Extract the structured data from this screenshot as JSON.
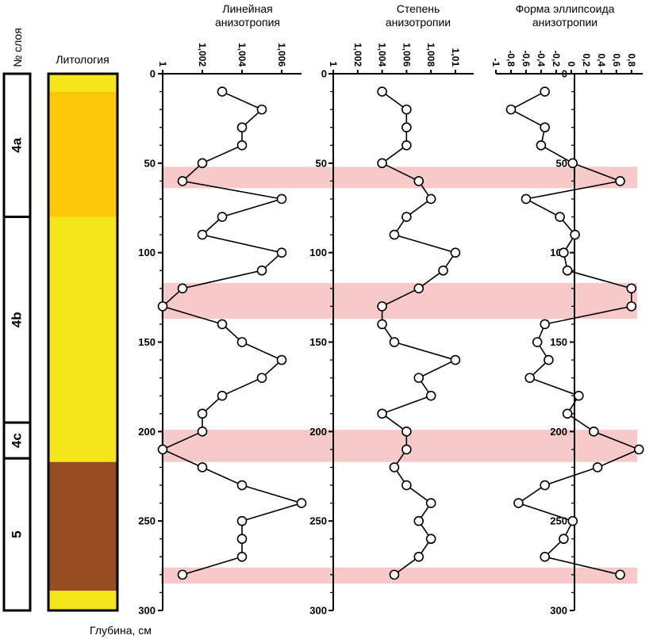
{
  "chart_data": {
    "type": "line",
    "y_axis": {
      "label": "Глубина, см",
      "range": [
        0,
        300
      ],
      "ticks": [
        "0",
        "50",
        "100",
        "150",
        "200",
        "250",
        "300"
      ]
    },
    "layer_column": {
      "header": "№ слоя",
      "layers": [
        {
          "name": "4a",
          "top": 0,
          "bottom": 80
        },
        {
          "name": "4b",
          "top": 80,
          "bottom": 195
        },
        {
          "name": "4c",
          "top": 195,
          "bottom": 215
        },
        {
          "name": "5",
          "top": 215,
          "bottom": 300
        }
      ]
    },
    "lithology": {
      "header": "Литология",
      "units": [
        {
          "top": 0,
          "bottom": 10,
          "color": "#f5e51b"
        },
        {
          "top": 10,
          "bottom": 80,
          "color": "#fdc70a"
        },
        {
          "top": 80,
          "bottom": 217,
          "color": "#f5e51b"
        },
        {
          "top": 217,
          "bottom": 289,
          "color": "#964b20"
        },
        {
          "top": 289,
          "bottom": 300,
          "color": "#f5e51b"
        }
      ]
    },
    "highlight_bands": [
      [
        52,
        64
      ],
      [
        117,
        137
      ],
      [
        199,
        217
      ],
      [
        276,
        285
      ]
    ],
    "highlight_color": "#f7c9c9",
    "depths": [
      10,
      20,
      30,
      40,
      50,
      60,
      70,
      80,
      90,
      100,
      110,
      120,
      130,
      140,
      150,
      160,
      170,
      180,
      190,
      200,
      210,
      220,
      230,
      240,
      250,
      260,
      270,
      280
    ],
    "panels": [
      {
        "title_lines": [
          "Линейная",
          "анизотропия"
        ],
        "xlim": [
          1,
          1.007
        ],
        "ticks": [
          "1",
          "1,002",
          "1,004",
          "1,006"
        ],
        "tick_values": [
          1,
          1.002,
          1.004,
          1.006
        ],
        "values": [
          1.003,
          1.005,
          1.004,
          1.004,
          1.002,
          1.001,
          1.006,
          1.003,
          1.002,
          1.006,
          1.005,
          1.001,
          1.0,
          1.003,
          1.004,
          1.006,
          1.005,
          1.003,
          1.002,
          1.002,
          1.0,
          1.002,
          1.004,
          1.007,
          1.004,
          1.004,
          1.004,
          1.001
        ]
      },
      {
        "title_lines": [
          "Степень",
          "анизотропии"
        ],
        "xlim": [
          1,
          1.0115
        ],
        "ticks": [
          "1",
          "1,002",
          "1,004",
          "1,006",
          "1,008",
          "1,01"
        ],
        "tick_values": [
          1,
          1.002,
          1.004,
          1.006,
          1.008,
          1.01
        ],
        "values": [
          1.004,
          1.006,
          1.006,
          1.006,
          1.004,
          1.007,
          1.008,
          1.006,
          1.005,
          1.01,
          1.009,
          1.007,
          1.004,
          1.004,
          1.005,
          1.01,
          1.007,
          1.008,
          1.004,
          1.006,
          1.006,
          1.005,
          1.006,
          1.008,
          1.007,
          1.008,
          1.007,
          1.005
        ]
      },
      {
        "title_lines": [
          "Форма эллипсоида",
          "анизотропии"
        ],
        "xlim": [
          -1,
          0.95
        ],
        "ticks": [
          "-1",
          "-0,8",
          "-0,6",
          "-0,4",
          "-0,2",
          "0",
          "0,2",
          "0,4",
          "0,6",
          "0,8"
        ],
        "tick_values": [
          -1,
          -0.8,
          -0.6,
          -0.4,
          -0.2,
          0,
          0.2,
          0.4,
          0.6,
          0.8
        ],
        "values": [
          -0.35,
          -0.8,
          -0.35,
          -0.4,
          0.02,
          0.65,
          -0.6,
          -0.15,
          0.05,
          -0.1,
          -0.05,
          0.8,
          0.8,
          -0.35,
          -0.45,
          -0.3,
          -0.55,
          0.1,
          -0.05,
          0.3,
          0.9,
          0.35,
          -0.35,
          -0.7,
          0.02,
          -0.1,
          -0.35,
          0.65
        ]
      }
    ]
  }
}
